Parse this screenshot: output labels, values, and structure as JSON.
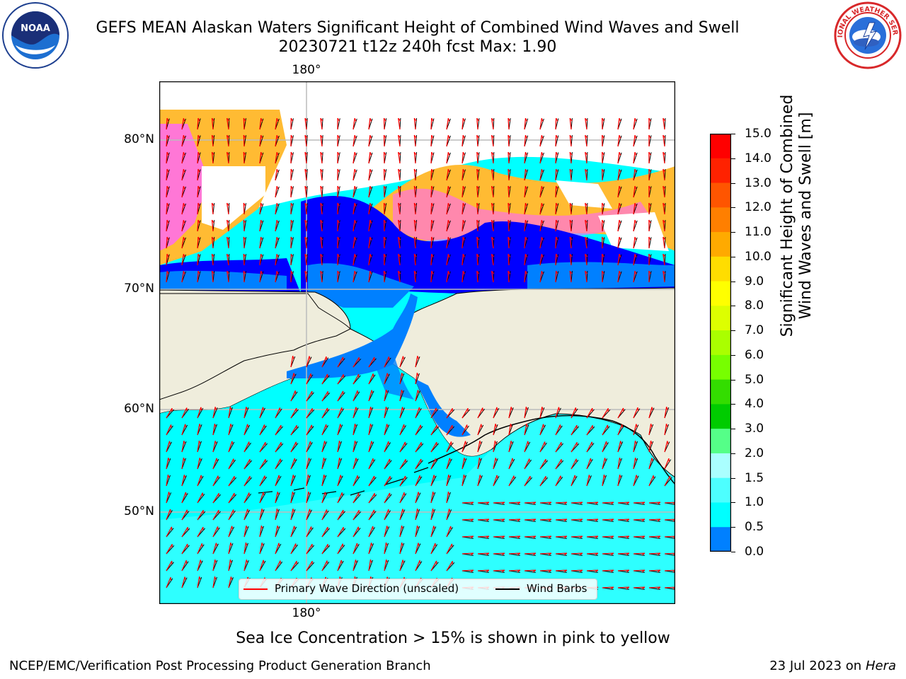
{
  "header": {
    "title_line1": "GEFS MEAN Alaskan Waters Significant Height of Combined Wind Waves and Swell",
    "title_line2": "20230721 t12z 240h fcst   Max: 1.90"
  },
  "logos": {
    "left": {
      "text": "NOAA",
      "icon": "noaa-logo"
    },
    "right": {
      "text": "NATIONAL WEATHER SERVICE",
      "icon": "nws-logo"
    }
  },
  "map": {
    "lon_top": "180°",
    "lon_bottom": "180°",
    "lat_labels": [
      "80°N",
      "70°N",
      "60°N",
      "50°N"
    ],
    "colors": {
      "land": "#efeddc",
      "ocean_low": "#00ffff",
      "ocean_mid": "#4dffff",
      "ice_pink": "#ff66ff",
      "ice_yellow": "#ffbb33",
      "blue_dark": "#0000ff",
      "blue_mid": "#0080ff",
      "wave_arrow": "#ff0000",
      "wind_barb": "#000000",
      "grid": "#bbbbbb"
    }
  },
  "legend": {
    "wave_label": "Primary Wave Direction (unscaled)",
    "wind_label": "Wind Barbs",
    "wave_color": "#ff0000",
    "wind_color": "#000000"
  },
  "colorbar": {
    "label_line1": "Significant Height of Combined",
    "label_line2": "Wind Waves and Swell [m]",
    "ticks": [
      "15.0",
      "14.0",
      "13.0",
      "12.0",
      "11.0",
      "10.0",
      "9.0",
      "8.0",
      "7.0",
      "6.0",
      "5.0",
      "4.0",
      "3.0",
      "2.0",
      "1.5",
      "1.0",
      "0.5",
      "0.0"
    ],
    "colors": [
      "#ff0000",
      "#ff2200",
      "#ff5500",
      "#ff7f00",
      "#ffaa00",
      "#ffdd00",
      "#ffff00",
      "#ddff00",
      "#aaff00",
      "#77ff00",
      "#33dd00",
      "#00cc00",
      "#55ff88",
      "#aaffff",
      "#4dffff",
      "#00ffff",
      "#0080ff",
      "#0000ff"
    ]
  },
  "notes": {
    "sea_ice": "Sea Ice Concentration > 15% is shown in pink to yellow"
  },
  "footer": {
    "left": "NCEP/EMC/Verification Post Processing Product Generation Branch",
    "right_date": "23 Jul 2023 on ",
    "right_host": "Hera"
  }
}
